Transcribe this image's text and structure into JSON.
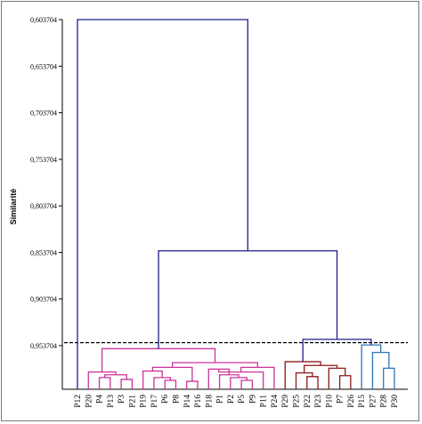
{
  "chart_data": {
    "type": "dendrogram",
    "ylabel": "Similarité",
    "ylim": [
      0.603704,
      0.99
    ],
    "y_ticks": [
      "0,603704",
      "0,653704",
      "0,703704",
      "0,753704",
      "0,803704",
      "0,853704",
      "0,903704",
      "0,953704"
    ],
    "y_tick_values": [
      0.603704,
      0.653704,
      0.703704,
      0.753704,
      0.803704,
      0.853704,
      0.903704,
      0.953704
    ],
    "leaves": [
      "P12",
      "P20",
      "P4",
      "P13",
      "P3",
      "P21",
      "P19",
      "P17",
      "P6",
      "P8",
      "P14",
      "P16",
      "P18",
      "P1",
      "P2",
      "P5",
      "P9",
      "P11",
      "P24",
      "P29",
      "P25",
      "P22",
      "P23",
      "P10",
      "P7",
      "P26",
      "P15",
      "P27",
      "P28",
      "P30"
    ],
    "cut_line": 0.9505,
    "colors": {
      "root": "#1f1f8c",
      "cluster_magenta": "#cc3399",
      "cluster_maroon": "#8b1a1a",
      "cluster_blue": "#2e75b6",
      "cut": "#000000",
      "axis": "#000000"
    },
    "merges": [
      {
        "a": 2,
        "b": 3,
        "sim": 0.988,
        "color": "cluster_magenta"
      },
      {
        "a": 4,
        "b": 5,
        "sim": 0.99,
        "color": "cluster_magenta"
      },
      {
        "a": 30,
        "b": 31,
        "sim": 0.985,
        "color": "cluster_magenta"
      },
      {
        "a": 1,
        "b": 32,
        "sim": 0.982,
        "color": "cluster_magenta"
      },
      {
        "a": 8,
        "b": 9,
        "sim": 0.991,
        "color": "cluster_magenta"
      },
      {
        "a": 7,
        "b": 34,
        "sim": 0.988,
        "color": "cluster_magenta"
      },
      {
        "a": 6,
        "b": 35,
        "sim": 0.981,
        "color": "cluster_magenta"
      },
      {
        "a": 10,
        "b": 11,
        "sim": 0.992,
        "color": "cluster_magenta"
      },
      {
        "a": 36,
        "b": 37,
        "sim": 0.977,
        "color": "cluster_magenta"
      },
      {
        "a": 15,
        "b": 16,
        "sim": 0.991,
        "color": "cluster_magenta"
      },
      {
        "a": 14,
        "b": 39,
        "sim": 0.988,
        "color": "cluster_magenta"
      },
      {
        "a": 13,
        "b": 40,
        "sim": 0.985,
        "color": "cluster_magenta"
      },
      {
        "a": 12,
        "b": 41,
        "sim": 0.979,
        "color": "cluster_magenta"
      },
      {
        "a": 42,
        "b": 17,
        "sim": 0.982,
        "color": "cluster_magenta"
      },
      {
        "a": 43,
        "b": 18,
        "sim": 0.977,
        "color": "cluster_magenta"
      },
      {
        "a": 38,
        "b": 44,
        "sim": 0.972,
        "color": "cluster_magenta"
      },
      {
        "a": 33,
        "b": 45,
        "sim": 0.957,
        "color": "cluster_magenta"
      },
      {
        "a": 21,
        "b": 22,
        "sim": 0.987,
        "color": "cluster_maroon"
      },
      {
        "a": 20,
        "b": 47,
        "sim": 0.983,
        "color": "cluster_maroon"
      },
      {
        "a": 24,
        "b": 25,
        "sim": 0.986,
        "color": "cluster_maroon"
      },
      {
        "a": 23,
        "b": 49,
        "sim": 0.978,
        "color": "cluster_maroon"
      },
      {
        "a": 48,
        "b": 50,
        "sim": 0.975,
        "color": "cluster_maroon"
      },
      {
        "a": 19,
        "b": 51,
        "sim": 0.971,
        "color": "cluster_maroon"
      },
      {
        "a": 28,
        "b": 29,
        "sim": 0.978,
        "color": "cluster_blue"
      },
      {
        "a": 27,
        "b": 53,
        "sim": 0.961,
        "color": "cluster_blue"
      },
      {
        "a": 26,
        "b": 54,
        "sim": 0.953,
        "color": "cluster_blue"
      },
      {
        "a": 52,
        "b": 55,
        "sim": 0.947,
        "color": "root"
      },
      {
        "a": 46,
        "b": 56,
        "sim": 0.852,
        "color": "root"
      },
      {
        "a": 0,
        "b": 57,
        "sim": 0.603704,
        "color": "root"
      }
    ]
  }
}
